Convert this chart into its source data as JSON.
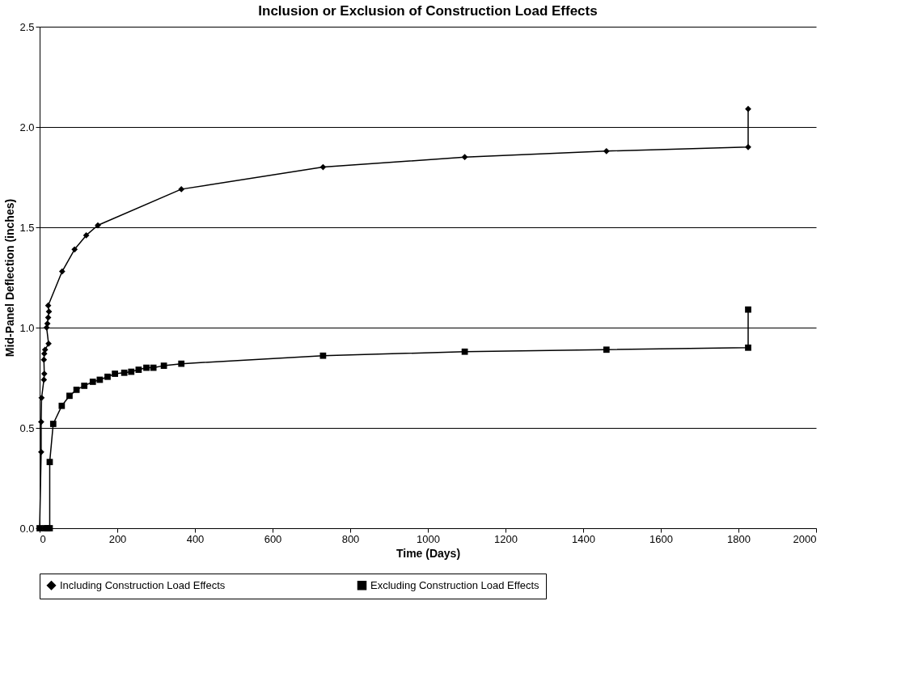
{
  "chart_data": {
    "type": "line",
    "title": "Inclusion or Exclusion of Construction Load Effects",
    "xlabel": "Time (Days)",
    "ylabel": "Mid-Panel Deflection (inches)",
    "xlim": [
      0,
      2000
    ],
    "xticks": [
      0,
      200,
      400,
      600,
      800,
      1000,
      1200,
      1400,
      1600,
      1800,
      2000
    ],
    "ylim": [
      0,
      2.5
    ],
    "yticks": [
      {
        "value": 0,
        "label": "0.0"
      },
      {
        "value": 0.5,
        "label": "0.5"
      },
      {
        "value": 1,
        "label": "1.0"
      },
      {
        "value": 1.5,
        "label": "1.5"
      },
      {
        "value": 2,
        "label": "2.0"
      },
      {
        "value": 2.5,
        "label": "2.5"
      }
    ],
    "grid": "y",
    "legend": "bottom",
    "line_style": "solid",
    "series": [
      {
        "name": "Including Construction Load Effects",
        "color": "#000000",
        "marker": "diamond",
        "x": [
          0,
          4,
          4,
          5,
          11,
          12,
          11,
          12,
          14,
          23,
          18,
          20,
          22,
          24,
          22,
          58,
          90,
          120,
          150,
          365,
          730,
          1095,
          1460,
          1825,
          1825
        ],
        "values": [
          0,
          0.38,
          0.53,
          0.65,
          0.74,
          0.77,
          0.84,
          0.87,
          0.89,
          0.92,
          1.0,
          1.02,
          1.05,
          1.08,
          1.11,
          1.28,
          1.39,
          1.46,
          1.51,
          1.69,
          1.8,
          1.85,
          1.88,
          1.9,
          2.09
        ]
      },
      {
        "name": "Excluding Construction Load Effects",
        "color": "#000000",
        "marker": "square",
        "x": [
          0,
          15,
          20,
          26,
          26,
          35,
          57,
          77,
          95,
          115,
          137,
          155,
          175,
          194,
          218,
          236,
          255,
          275,
          293,
          320,
          365,
          730,
          1095,
          1460,
          1825,
          1825
        ],
        "values": [
          0,
          0,
          0,
          0,
          0.33,
          0.52,
          0.61,
          0.66,
          0.69,
          0.71,
          0.73,
          0.74,
          0.755,
          0.77,
          0.775,
          0.78,
          0.79,
          0.8,
          0.8,
          0.81,
          0.82,
          0.86,
          0.88,
          0.89,
          0.9,
          1.09
        ]
      }
    ]
  }
}
